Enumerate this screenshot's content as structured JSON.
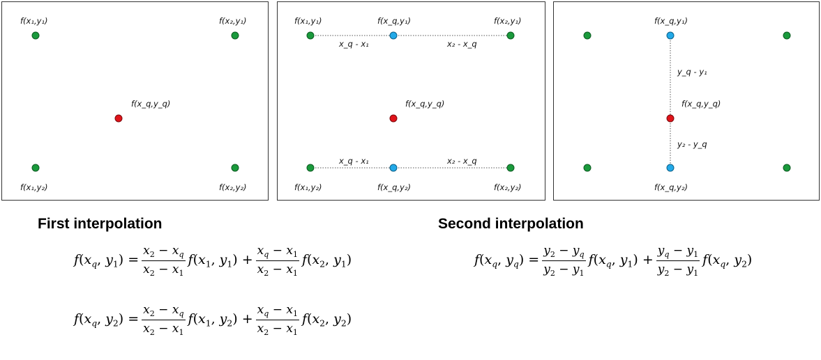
{
  "colors": {
    "corner": "#1a9a3c",
    "query": "#e0141a",
    "intermediate": "#22a9e8"
  },
  "panel1": {
    "labels": {
      "top_left": "f(x₁,y₁)",
      "top_right": "f(x₂,y₁)",
      "center": "f(x_q,y_q)",
      "bottom_left": "f(x₁,y₂)",
      "bottom_right": "f(x₂,y₂)"
    }
  },
  "panel2": {
    "labels": {
      "top_left": "f(x₁,y₁)",
      "top_mid": "f(x_q,y₁)",
      "top_right": "f(x₂,y₁)",
      "center": "f(x_q,y_q)",
      "bottom_left": "f(x₁,y₂)",
      "bottom_mid": "f(x_q,y₂)",
      "bottom_right": "f(x₂,y₂)",
      "top_left_dist": "x_q - x₁",
      "top_right_dist": "x₂ - x_q",
      "bottom_left_dist": "x_q - x₁",
      "bottom_right_dist": "x₂ - x_q"
    }
  },
  "panel3": {
    "labels": {
      "top_mid": "f(x_q,y₁)",
      "center": "f(x_q,y_q)",
      "bottom_mid": "f(x_q,y₂)",
      "upper_dist": "y_q - y₁",
      "lower_dist": "y₂ - y_q"
    }
  },
  "headings": {
    "first": "First interpolation",
    "second": "Second interpolation"
  }
}
